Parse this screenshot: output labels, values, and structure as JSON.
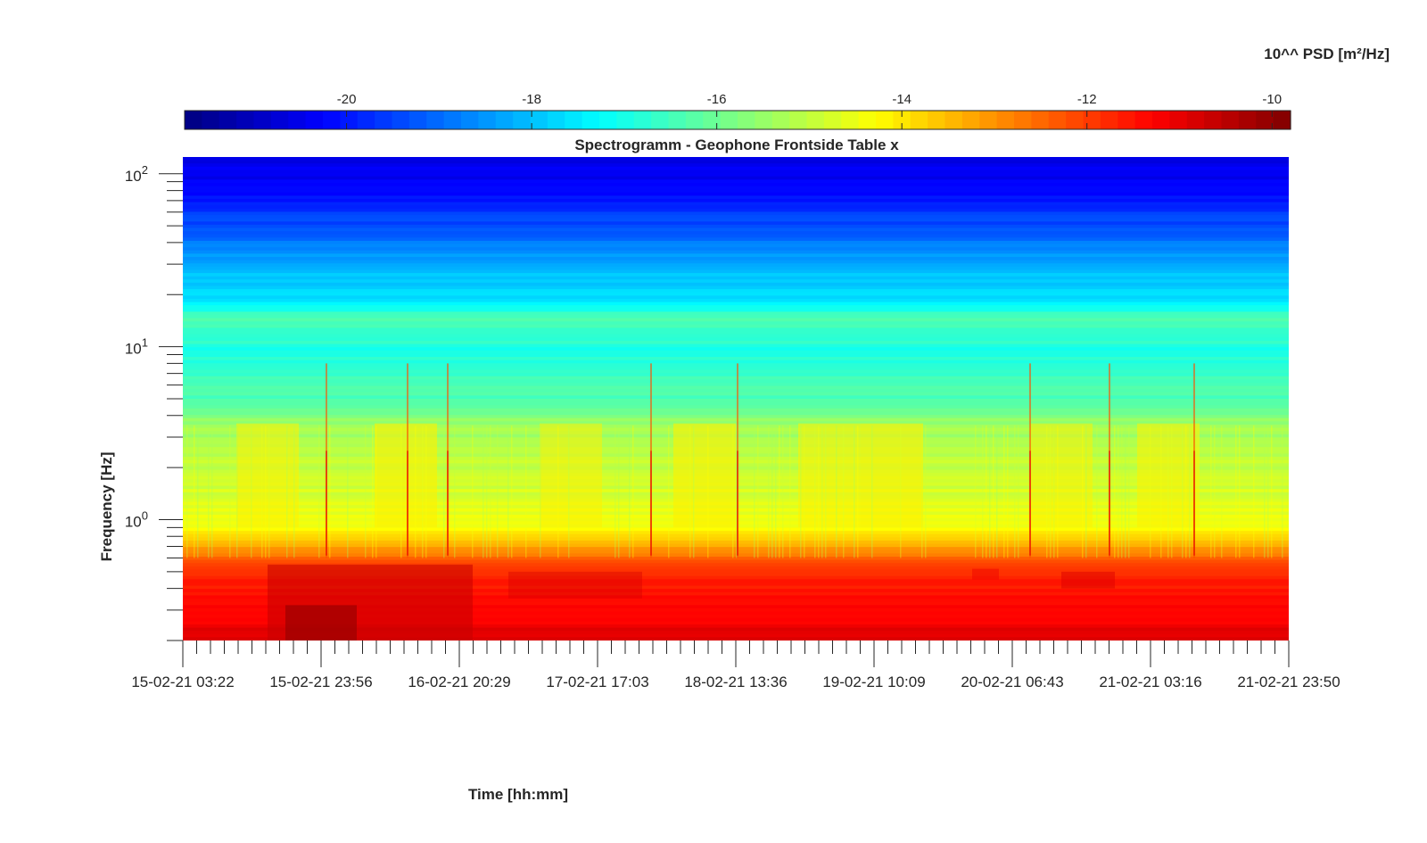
{
  "chart_data": {
    "type": "heatmap",
    "title": "Spectrogramm - Geophone Frontside Table x",
    "xlabel": "Time [hh:mm]",
    "ylabel": "Frequency [Hz]",
    "x_tick_labels": [
      "15-02-21 03:22",
      "15-02-21 23:56",
      "16-02-21 20:29",
      "17-02-21 17:03",
      "18-02-21 13:36",
      "19-02-21 10:09",
      "20-02-21 06:43",
      "21-02-21 03:16",
      "21-02-21 23:50"
    ],
    "y_scale": "log",
    "ylim": [
      0.2,
      125
    ],
    "y_ticks": [
      {
        "value": 1,
        "base": "10",
        "exp": "0"
      },
      {
        "value": 10,
        "base": "10",
        "exp": "1"
      },
      {
        "value": 100,
        "base": "10",
        "exp": "2"
      }
    ],
    "colorbar": {
      "label": "10^^ PSD [m²/Hz]",
      "range": [
        -21.75,
        -9.8
      ],
      "ticks": [
        -20,
        -18,
        -16,
        -14,
        -12,
        -10
      ],
      "tick_labels": [
        "-20",
        "-18",
        "-16",
        "-14",
        "-12",
        "-10"
      ],
      "colormap": "jet",
      "placement": "top"
    },
    "psd_profile": [
      {
        "freq": 0.2,
        "value": -11.0
      },
      {
        "freq": 0.4,
        "value": -11.5
      },
      {
        "freq": 0.6,
        "value": -12.3
      },
      {
        "freq": 0.75,
        "value": -13.8
      },
      {
        "freq": 1.0,
        "value": -14.5
      },
      {
        "freq": 2.0,
        "value": -15.0
      },
      {
        "freq": 3.5,
        "value": -15.4
      },
      {
        "freq": 4.5,
        "value": -16.2
      },
      {
        "freq": 10,
        "value": -16.9
      },
      {
        "freq": 15,
        "value": -16.3
      },
      {
        "freq": 18,
        "value": -17.6
      },
      {
        "freq": 30,
        "value": -18.2
      },
      {
        "freq": 45,
        "value": -19.2
      },
      {
        "freq": 60,
        "value": -19.6
      },
      {
        "freq": 80,
        "value": -20.3
      },
      {
        "freq": 125,
        "value": -20.6
      }
    ]
  }
}
